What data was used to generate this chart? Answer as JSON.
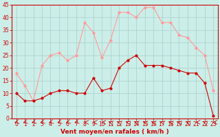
{
  "hours": [
    0,
    1,
    2,
    3,
    4,
    5,
    6,
    7,
    8,
    9,
    10,
    11,
    12,
    13,
    14,
    15,
    16,
    17,
    18,
    19,
    20,
    21,
    22,
    23
  ],
  "wind_avg": [
    10,
    7,
    7,
    8,
    10,
    11,
    11,
    10,
    10,
    16,
    11,
    12,
    20,
    23,
    25,
    21,
    21,
    21,
    20,
    19,
    18,
    18,
    14,
    1
  ],
  "wind_gust": [
    18,
    13,
    7,
    21,
    25,
    26,
    23,
    25,
    38,
    34,
    24,
    31,
    42,
    42,
    40,
    44,
    44,
    38,
    38,
    33,
    32,
    28,
    25,
    11
  ],
  "xlabel": "Vent moyen/en rafales ( km/h )",
  "bg_color": "#cceee8",
  "grid_color": "#aacccc",
  "line_avg_color": "#cc0000",
  "line_gust_color": "#ff9999",
  "ylim": [
    0,
    45
  ],
  "yticks": [
    0,
    5,
    10,
    15,
    20,
    25,
    30,
    35,
    40,
    45
  ],
  "xticks": [
    0,
    1,
    2,
    3,
    4,
    5,
    6,
    7,
    8,
    9,
    10,
    11,
    12,
    13,
    14,
    15,
    16,
    17,
    18,
    19,
    20,
    21,
    22,
    23
  ],
  "tick_fontsize": 5.5,
  "xlabel_fontsize": 6.5
}
